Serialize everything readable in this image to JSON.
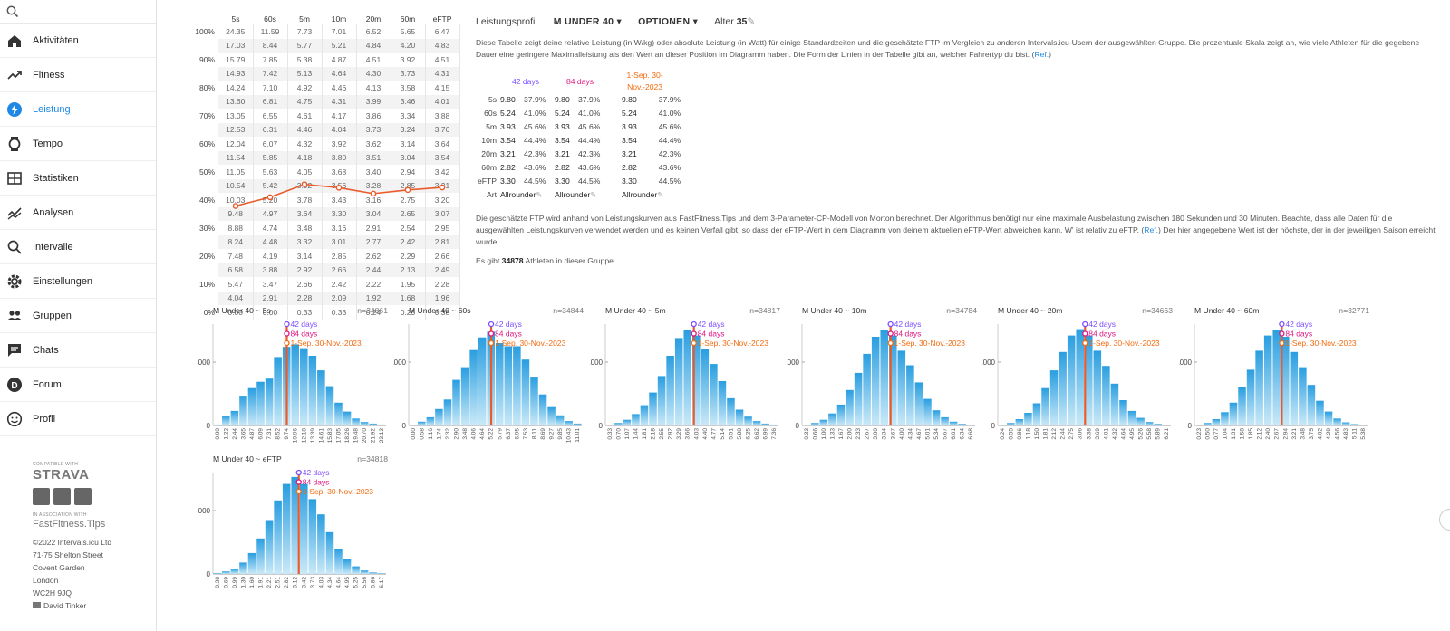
{
  "search": {
    "icon": "search-icon"
  },
  "nav": [
    {
      "label": "Aktivitäten",
      "icon": "home-icon"
    },
    {
      "label": "Fitness",
      "icon": "trend-icon"
    },
    {
      "label": "Leistung",
      "icon": "bolt-icon",
      "active": true
    },
    {
      "label": "Tempo",
      "icon": "watch-icon"
    },
    {
      "label": "Statistiken",
      "icon": "stats-icon"
    },
    {
      "label": "Analysen",
      "icon": "analysis-icon"
    },
    {
      "label": "Intervalle",
      "icon": "search-icon"
    },
    {
      "label": "Einstellungen",
      "icon": "gear-icon"
    },
    {
      "label": "Gruppen",
      "icon": "group-icon"
    },
    {
      "label": "Chats",
      "icon": "chat-icon"
    },
    {
      "label": "Forum",
      "icon": "forum-icon"
    },
    {
      "label": "Profil",
      "icon": "profile-icon"
    }
  ],
  "footer": {
    "compatible": "COMPATIBLE WITH",
    "strava": "STRAVA",
    "assoc": "IN ASSOCIATION WITH",
    "ffit": "FastFitness.Tips",
    "copy": "©2022 Intervals.icu Ltd",
    "addr1": "71-75 Shelton Street",
    "addr2": "Covent Garden",
    "addr3": "London",
    "addr4": "WC2H 9JQ",
    "user": "David Tinker"
  },
  "table": {
    "headers": [
      "5s",
      "60s",
      "5m",
      "10m",
      "20m",
      "60m",
      "eFTP"
    ],
    "rows": [
      {
        "pct": "100%",
        "vals": [
          "24.35",
          "11.59",
          "7.73",
          "7.01",
          "6.52",
          "5.65",
          "6.47"
        ]
      },
      {
        "pct": "",
        "vals": [
          "17.03",
          "8.44",
          "5.77",
          "5.21",
          "4.84",
          "4.20",
          "4.83"
        ]
      },
      {
        "pct": "90%",
        "vals": [
          "15.79",
          "7.85",
          "5.38",
          "4.87",
          "4.51",
          "3.92",
          "4.51"
        ]
      },
      {
        "pct": "",
        "vals": [
          "14.93",
          "7.42",
          "5.13",
          "4.64",
          "4.30",
          "3.73",
          "4.31"
        ]
      },
      {
        "pct": "80%",
        "vals": [
          "14.24",
          "7.10",
          "4.92",
          "4.46",
          "4.13",
          "3.58",
          "4.15"
        ]
      },
      {
        "pct": "",
        "vals": [
          "13.60",
          "6.81",
          "4.75",
          "4.31",
          "3.99",
          "3.46",
          "4.01"
        ]
      },
      {
        "pct": "70%",
        "vals": [
          "13.05",
          "6.55",
          "4.61",
          "4.17",
          "3.86",
          "3.34",
          "3.88"
        ]
      },
      {
        "pct": "",
        "vals": [
          "12.53",
          "6.31",
          "4.46",
          "4.04",
          "3.73",
          "3.24",
          "3.76"
        ]
      },
      {
        "pct": "60%",
        "vals": [
          "12.04",
          "6.07",
          "4.32",
          "3.92",
          "3.62",
          "3.14",
          "3.64"
        ]
      },
      {
        "pct": "",
        "vals": [
          "11.54",
          "5.85",
          "4.18",
          "3.80",
          "3.51",
          "3.04",
          "3.54"
        ]
      },
      {
        "pct": "50%",
        "vals": [
          "11.05",
          "5.63",
          "4.05",
          "3.68",
          "3.40",
          "2.94",
          "3.42"
        ]
      },
      {
        "pct": "",
        "vals": [
          "10.54",
          "5.42",
          "3.92",
          "3.56",
          "3.28",
          "2.85",
          "3.31"
        ]
      },
      {
        "pct": "40%",
        "vals": [
          "10.03",
          "5.20",
          "3.78",
          "3.43",
          "3.16",
          "2.75",
          "3.20"
        ]
      },
      {
        "pct": "",
        "vals": [
          "9.48",
          "4.97",
          "3.64",
          "3.30",
          "3.04",
          "2.65",
          "3.07"
        ]
      },
      {
        "pct": "30%",
        "vals": [
          "8.88",
          "4.74",
          "3.48",
          "3.16",
          "2.91",
          "2.54",
          "2.95"
        ]
      },
      {
        "pct": "",
        "vals": [
          "8.24",
          "4.48",
          "3.32",
          "3.01",
          "2.77",
          "2.42",
          "2.81"
        ]
      },
      {
        "pct": "20%",
        "vals": [
          "7.48",
          "4.19",
          "3.14",
          "2.85",
          "2.62",
          "2.29",
          "2.66"
        ]
      },
      {
        "pct": "",
        "vals": [
          "6.58",
          "3.88",
          "2.92",
          "2.66",
          "2.44",
          "2.13",
          "2.49"
        ]
      },
      {
        "pct": "10%",
        "vals": [
          "5.47",
          "3.47",
          "2.66",
          "2.42",
          "2.22",
          "1.95",
          "2.28"
        ]
      },
      {
        "pct": "",
        "vals": [
          "4.04",
          "2.91",
          "2.28",
          "2.09",
          "1.92",
          "1.68",
          "1.96"
        ]
      },
      {
        "pct": "0%",
        "vals": [
          "0.00",
          "0.00",
          "0.33",
          "0.33",
          "0.24",
          "0.23",
          "0.38"
        ]
      }
    ],
    "line_percentiles": [
      37.9,
      41.0,
      45.6,
      44.4,
      42.3,
      43.6,
      44.5
    ]
  },
  "header": {
    "title": "Leistungsprofil",
    "group": "M UNDER 40",
    "options": "OPTIONEN",
    "age_label": "Alter",
    "age": "35"
  },
  "desc1": "Diese Tabelle zeigt deine relative Leistung (in W/kg) oder absolute Leistung (in Watt) für einige Standardzeiten und die geschätzte FTP im Vergleich zu anderen Intervals.icu-Usern der ausgewählten Gruppe. Die prozentuale Skala zeigt an, wie viele Athleten für die gegebene Dauer eine geringere Maximalleistung als den Wert an dieser Position im Diagramm haben. Die Form der Linien in der Tabelle gibt an, welcher Fahrertyp du bist.",
  "ref": "Ref.",
  "compare": {
    "cols": [
      "42 days",
      "84 days",
      "1-Sep. 30-Nov.-2023"
    ],
    "rows": [
      {
        "label": "5s",
        "a": "9.80",
        "ap": "37.9%",
        "b": "9.80",
        "bp": "37.9%",
        "c": "9.80",
        "cp": "37.9%"
      },
      {
        "label": "60s",
        "a": "5.24",
        "ap": "41.0%",
        "b": "5.24",
        "bp": "41.0%",
        "c": "5.24",
        "cp": "41.0%"
      },
      {
        "label": "5m",
        "a": "3.93",
        "ap": "45.6%",
        "b": "3.93",
        "bp": "45.6%",
        "c": "3.93",
        "cp": "45.6%"
      },
      {
        "label": "10m",
        "a": "3.54",
        "ap": "44.4%",
        "b": "3.54",
        "bp": "44.4%",
        "c": "3.54",
        "cp": "44.4%"
      },
      {
        "label": "20m",
        "a": "3.21",
        "ap": "42.3%",
        "b": "3.21",
        "bp": "42.3%",
        "c": "3.21",
        "cp": "42.3%"
      },
      {
        "label": "60m",
        "a": "2.82",
        "ap": "43.6%",
        "b": "2.82",
        "bp": "43.6%",
        "c": "2.82",
        "cp": "43.6%"
      },
      {
        "label": "eFTP",
        "a": "3.30",
        "ap": "44.5%",
        "b": "3.30",
        "bp": "44.5%",
        "c": "3.30",
        "cp": "44.5%"
      }
    ],
    "art_label": "Art",
    "art": "Allrounder"
  },
  "desc2a": "Die geschätzte FTP wird anhand von Leistungskurven aus FastFitness.Tips und dem 3-Parameter-CP-Modell von Morton berechnet. Der Algorithmus benötigt nur eine maximale Ausbelastung zwischen 180 Sekunden und 30 Minuten. Beachte, dass alle Daten für die ausgewählten Leistungskurven verwendet werden und es keinen Verfall gibt, so dass der eFTP-Wert in dem Diagramm von deinem aktuellen eFTP-Wert abweichen kann. W' ist relativ zu eFTP.",
  "desc2b": "Der hier angegebene Wert ist der höchste, der in der jeweiligen Saison erreicht wurde.",
  "count_pre": "Es gibt",
  "count": "34878",
  "count_post": "Athleten in dieser Gruppe.",
  "colors": {
    "accent": "#1e88e5",
    "line": "#ea5a2a",
    "c42": "#7b4dff",
    "c84": "#e0157f",
    "cseason": "#f26b0f",
    "bar": "#4fb3e6"
  },
  "chart_data": [
    {
      "type": "bar",
      "title": "M Under 40 ~ 5s",
      "n": "n=34861",
      "categories": [
        "0.00",
        "1.22",
        "2.44",
        "3.65",
        "4.87",
        "6.09",
        "7.31",
        "8.52",
        "9.74",
        "10.96",
        "12.18",
        "13.39",
        "14.61",
        "15.83",
        "17.05",
        "18.26",
        "19.48",
        "20.70",
        "21.92",
        "23.13"
      ],
      "values": [
        15,
        150,
        230,
        470,
        590,
        690,
        740,
        1080,
        1240,
        1280,
        1220,
        1100,
        870,
        620,
        360,
        220,
        110,
        55,
        30,
        15
      ],
      "marker": 9.8,
      "yticks": [
        "0",
        "1000",
        "2000"
      ],
      "legend": [
        "42 days",
        "84 days",
        "1-Sep. 30-Nov.-2023"
      ]
    },
    {
      "type": "bar",
      "title": "M Under 40 ~ 60s",
      "n": "n=34844",
      "categories": [
        "0.00",
        "0.58",
        "1.16",
        "1.74",
        "2.32",
        "2.90",
        "3.48",
        "4.06",
        "4.64",
        "5.22",
        "5.79",
        "6.37",
        "6.95",
        "7.53",
        "8.11",
        "8.69",
        "9.27",
        "9.85",
        "10.43",
        "11.01"
      ],
      "values": [
        10,
        60,
        130,
        260,
        410,
        720,
        920,
        1190,
        1390,
        1480,
        1300,
        1250,
        1250,
        1040,
        770,
        490,
        290,
        160,
        70,
        30
      ],
      "marker": 5.24,
      "yticks": [
        "0",
        "1000",
        "2000"
      ],
      "legend": [
        "42 days",
        "84 days",
        "1-Sep. 30-Nov.-2023"
      ]
    },
    {
      "type": "bar",
      "title": "M Under 40 ~ 5m",
      "n": "n=34817",
      "categories": [
        "0.33",
        "0.70",
        "1.07",
        "1.44",
        "1.81",
        "2.18",
        "2.55",
        "2.92",
        "3.29",
        "3.66",
        "4.03",
        "4.40",
        "4.77",
        "5.14",
        "5.51",
        "5.88",
        "6.25",
        "6.62",
        "6.99",
        "7.36"
      ],
      "values": [
        10,
        40,
        90,
        180,
        320,
        520,
        780,
        1100,
        1380,
        1500,
        1420,
        1200,
        970,
        700,
        430,
        250,
        140,
        70,
        30,
        15
      ],
      "marker": 3.93,
      "yticks": [
        "0",
        "1000",
        "2000"
      ],
      "legend": [
        "42 days",
        "84 days",
        "1-Sep. 30-Nov.-2023"
      ]
    },
    {
      "type": "bar",
      "title": "M Under 40 ~ 10m",
      "n": "n=34784",
      "categories": [
        "0.33",
        "0.66",
        "1.00",
        "1.33",
        "1.67",
        "2.00",
        "2.33",
        "2.67",
        "3.00",
        "3.34",
        "3.67",
        "4.00",
        "4.34",
        "4.67",
        "5.01",
        "5.34",
        "5.67",
        "6.01",
        "6.34",
        "6.68"
      ],
      "values": [
        10,
        40,
        90,
        190,
        330,
        560,
        830,
        1130,
        1400,
        1510,
        1420,
        1180,
        950,
        680,
        420,
        240,
        130,
        60,
        25,
        12
      ],
      "marker": 3.54,
      "yticks": [
        "0",
        "1000",
        "2000"
      ],
      "legend": [
        "42 days",
        "84 days",
        "1-Sep. 30-Nov.-2023"
      ]
    },
    {
      "type": "bar",
      "title": "M Under 40 ~ 20m",
      "n": "n=34663",
      "categories": [
        "0.24",
        "0.55",
        "0.86",
        "1.18",
        "1.50",
        "1.81",
        "2.12",
        "2.44",
        "2.75",
        "3.06",
        "3.38",
        "3.69",
        "4.01",
        "4.32",
        "4.64",
        "4.95",
        "5.26",
        "5.58",
        "5.89",
        "6.21"
      ],
      "values": [
        10,
        40,
        100,
        200,
        350,
        590,
        870,
        1160,
        1420,
        1520,
        1420,
        1180,
        940,
        660,
        400,
        230,
        120,
        55,
        25,
        12
      ],
      "marker": 3.21,
      "yticks": [
        "0",
        "1000",
        "2000"
      ],
      "legend": [
        "42 days",
        "84 days",
        "1-Sep. 30-Nov.-2023"
      ]
    },
    {
      "type": "bar",
      "title": "M Under 40 ~ 60m",
      "n": "n=32771",
      "categories": [
        "0.23",
        "0.50",
        "0.77",
        "1.04",
        "1.31",
        "1.58",
        "1.85",
        "2.12",
        "2.40",
        "2.67",
        "2.94",
        "3.21",
        "3.48",
        "3.75",
        "4.02",
        "4.29",
        "4.56",
        "4.83",
        "5.11",
        "5.38"
      ],
      "values": [
        10,
        40,
        100,
        210,
        360,
        600,
        880,
        1180,
        1420,
        1510,
        1400,
        1160,
        920,
        640,
        390,
        220,
        110,
        50,
        22,
        10
      ],
      "marker": 2.82,
      "yticks": [
        "0",
        "1000",
        "2000"
      ],
      "legend": [
        "42 days",
        "84 days",
        "1-Sep. 30-Nov.-2023"
      ]
    },
    {
      "type": "bar",
      "title": "M Under 40 ~ eFTP",
      "n": "n=34818",
      "categories": [
        "0.38",
        "0.69",
        "0.99",
        "1.30",
        "1.60",
        "1.91",
        "2.21",
        "2.51",
        "2.82",
        "3.12",
        "3.42",
        "3.73",
        "4.03",
        "4.34",
        "4.64",
        "4.95",
        "5.25",
        "5.56",
        "5.86",
        "6.17"
      ],
      "values": [
        15,
        40,
        80,
        180,
        330,
        560,
        850,
        1160,
        1420,
        1530,
        1420,
        1180,
        940,
        660,
        400,
        230,
        120,
        55,
        25,
        12
      ],
      "marker": 3.3,
      "yticks": [
        "0",
        "1000",
        "2000"
      ],
      "legend": [
        "42 days",
        "84 days",
        "1-Sep. 30-Nov.-2023"
      ]
    }
  ]
}
